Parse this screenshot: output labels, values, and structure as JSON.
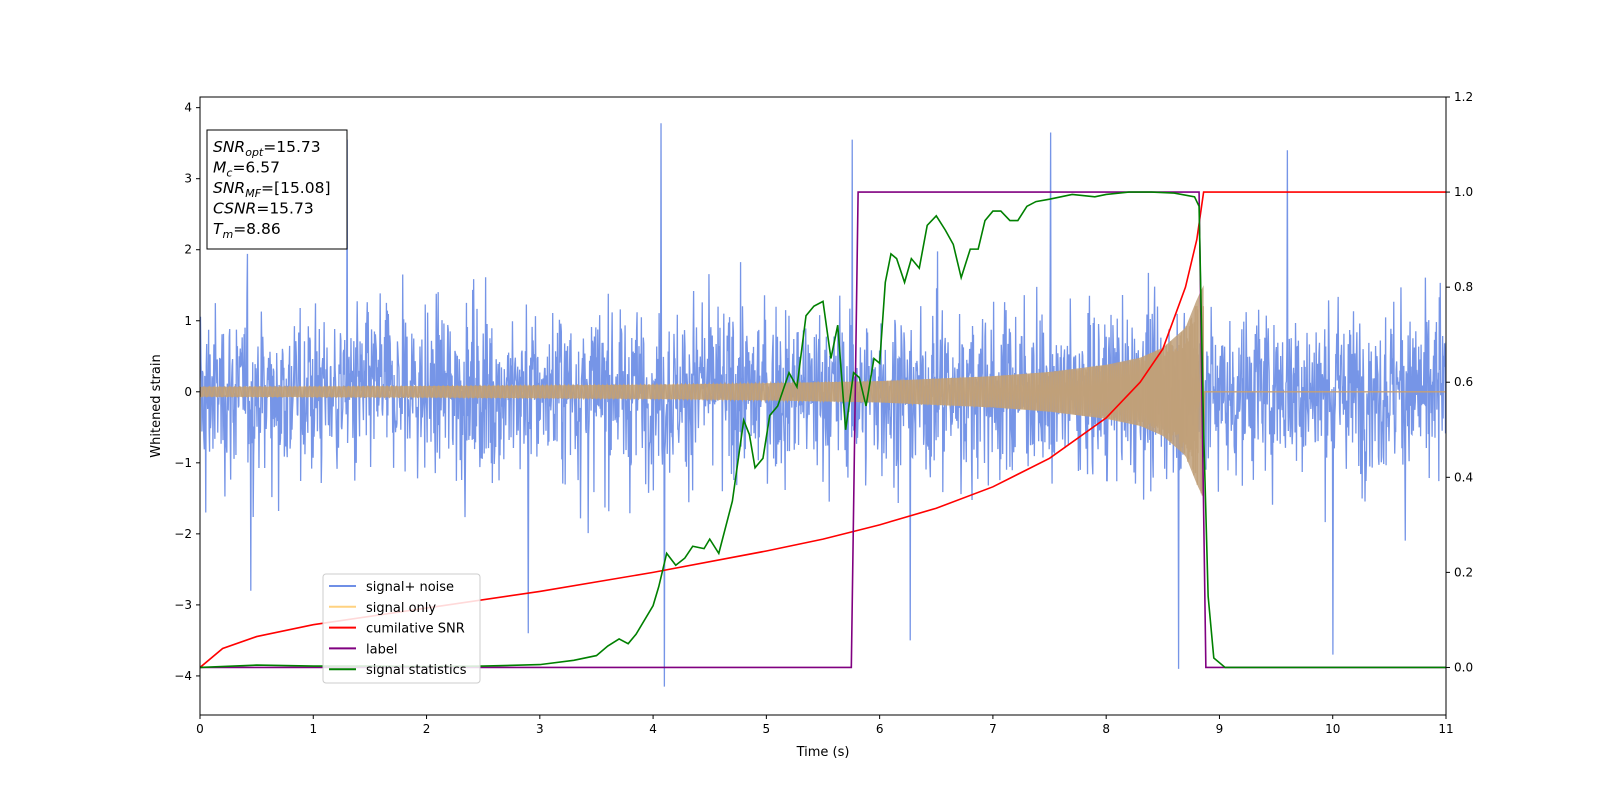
{
  "chart_data": {
    "type": "line",
    "xlabel": "Time (s)",
    "ylabel": "Whitened strain",
    "xlim": [
      0,
      11
    ],
    "ylim_left": [
      -4.55,
      4.15
    ],
    "ylim_right": [
      -0.1,
      1.2
    ],
    "x_ticks": [
      "0",
      "1",
      "2",
      "3",
      "4",
      "5",
      "6",
      "7",
      "8",
      "9",
      "10",
      "11"
    ],
    "y_ticks_left": [
      "−4",
      "−3",
      "−2",
      "−1",
      "0",
      "1",
      "2",
      "3",
      "4"
    ],
    "y_ticks_right": [
      "0.0",
      "0.2",
      "0.4",
      "0.6",
      "0.8",
      "1.0",
      "1.2"
    ],
    "legend_position": "lower-left",
    "annotation_box": {
      "position": "top-left",
      "lines": [
        {
          "base": "SNR",
          "sub": "opt",
          "value": "=15.73"
        },
        {
          "base": "M",
          "sub": "c",
          "value": "=6.57"
        },
        {
          "base": "SNR",
          "sub": "MF",
          "value": "=[15.08]"
        },
        {
          "base": "CSNR",
          "sub": "",
          "value": "=15.73"
        },
        {
          "base": "T",
          "sub": "m",
          "value": "=8.86"
        }
      ]
    },
    "series": [
      {
        "name": "signal+ noise",
        "color": "#6f8fe6",
        "axis": "left",
        "style": "noise band, amplitude about ±2 (peaks −4.15 to 3.78)",
        "notable_peaks": [
          [
            0.05,
            -1.7
          ],
          [
            0.45,
            -2.8
          ],
          [
            1.3,
            3.55
          ],
          [
            2.9,
            -3.4
          ],
          [
            4.07,
            3.78
          ],
          [
            4.1,
            -4.15
          ],
          [
            5.76,
            3.55
          ],
          [
            6.27,
            -3.5
          ],
          [
            7.51,
            3.65
          ],
          [
            8.64,
            -3.9
          ],
          [
            9.6,
            3.4
          ],
          [
            10.0,
            -3.7
          ]
        ]
      },
      {
        "name": "signal only",
        "color": "#f2c27a",
        "axis": "left",
        "style": "chirp, amplitude envelope",
        "envelope": [
          [
            0,
            0.07
          ],
          [
            2,
            0.08
          ],
          [
            4,
            0.1
          ],
          [
            5,
            0.12
          ],
          [
            6,
            0.15
          ],
          [
            7,
            0.22
          ],
          [
            7.5,
            0.28
          ],
          [
            8,
            0.38
          ],
          [
            8.3,
            0.48
          ],
          [
            8.5,
            0.62
          ],
          [
            8.7,
            0.9
          ],
          [
            8.8,
            1.3
          ],
          [
            8.86,
            1.5
          ],
          [
            8.87,
            0
          ]
        ],
        "after_merger": 0
      },
      {
        "name": "cumilative SNR",
        "color": "#ff0000",
        "axis": "right",
        "points": [
          [
            0,
            0
          ],
          [
            0.2,
            0.04
          ],
          [
            0.5,
            0.065
          ],
          [
            1,
            0.09
          ],
          [
            2,
            0.125
          ],
          [
            3,
            0.16
          ],
          [
            4,
            0.2
          ],
          [
            5,
            0.245
          ],
          [
            5.5,
            0.27
          ],
          [
            6,
            0.3
          ],
          [
            6.5,
            0.335
          ],
          [
            7,
            0.38
          ],
          [
            7.5,
            0.44
          ],
          [
            8,
            0.525
          ],
          [
            8.3,
            0.6
          ],
          [
            8.5,
            0.67
          ],
          [
            8.7,
            0.8
          ],
          [
            8.8,
            0.9
          ],
          [
            8.86,
            1.0
          ],
          [
            11,
            1.0
          ]
        ]
      },
      {
        "name": "label",
        "color": "#800080",
        "axis": "right",
        "points": [
          [
            0,
            0
          ],
          [
            5.75,
            0
          ],
          [
            5.81,
            1
          ],
          [
            8.82,
            1
          ],
          [
            8.88,
            0
          ],
          [
            11,
            0
          ]
        ]
      },
      {
        "name": "signal statistics",
        "color": "#008000",
        "axis": "right",
        "points": [
          [
            0,
            0
          ],
          [
            0.5,
            0.005
          ],
          [
            1,
            0.003
          ],
          [
            1.5,
            0.003
          ],
          [
            2,
            0.002
          ],
          [
            2.5,
            0.003
          ],
          [
            3,
            0.006
          ],
          [
            3.3,
            0.015
          ],
          [
            3.5,
            0.025
          ],
          [
            3.6,
            0.045
          ],
          [
            3.7,
            0.06
          ],
          [
            3.78,
            0.05
          ],
          [
            3.85,
            0.07
          ],
          [
            4.0,
            0.13
          ],
          [
            4.05,
            0.17
          ],
          [
            4.12,
            0.24
          ],
          [
            4.2,
            0.215
          ],
          [
            4.28,
            0.23
          ],
          [
            4.35,
            0.255
          ],
          [
            4.45,
            0.25
          ],
          [
            4.5,
            0.27
          ],
          [
            4.58,
            0.24
          ],
          [
            4.7,
            0.35
          ],
          [
            4.8,
            0.52
          ],
          [
            4.85,
            0.49
          ],
          [
            4.9,
            0.42
          ],
          [
            4.97,
            0.44
          ],
          [
            5.03,
            0.53
          ],
          [
            5.1,
            0.55
          ],
          [
            5.2,
            0.62
          ],
          [
            5.27,
            0.59
          ],
          [
            5.35,
            0.74
          ],
          [
            5.42,
            0.76
          ],
          [
            5.5,
            0.77
          ],
          [
            5.57,
            0.65
          ],
          [
            5.63,
            0.72
          ],
          [
            5.7,
            0.5
          ],
          [
            5.77,
            0.62
          ],
          [
            5.82,
            0.61
          ],
          [
            5.88,
            0.55
          ],
          [
            5.95,
            0.65
          ],
          [
            6.0,
            0.64
          ],
          [
            6.05,
            0.81
          ],
          [
            6.1,
            0.87
          ],
          [
            6.15,
            0.86
          ],
          [
            6.22,
            0.81
          ],
          [
            6.28,
            0.86
          ],
          [
            6.35,
            0.84
          ],
          [
            6.42,
            0.93
          ],
          [
            6.5,
            0.95
          ],
          [
            6.58,
            0.92
          ],
          [
            6.65,
            0.89
          ],
          [
            6.72,
            0.82
          ],
          [
            6.8,
            0.88
          ],
          [
            6.87,
            0.88
          ],
          [
            6.93,
            0.94
          ],
          [
            7.0,
            0.96
          ],
          [
            7.07,
            0.96
          ],
          [
            7.15,
            0.94
          ],
          [
            7.22,
            0.94
          ],
          [
            7.3,
            0.97
          ],
          [
            7.38,
            0.98
          ],
          [
            7.5,
            0.985
          ],
          [
            7.7,
            0.995
          ],
          [
            7.9,
            0.99
          ],
          [
            8.0,
            0.995
          ],
          [
            8.2,
            1.0
          ],
          [
            8.4,
            1.0
          ],
          [
            8.6,
            0.998
          ],
          [
            8.78,
            0.99
          ],
          [
            8.82,
            0.97
          ],
          [
            8.86,
            0.5
          ],
          [
            8.9,
            0.15
          ],
          [
            8.95,
            0.02
          ],
          [
            9.05,
            0.0
          ],
          [
            11,
            0.0
          ]
        ]
      }
    ]
  }
}
